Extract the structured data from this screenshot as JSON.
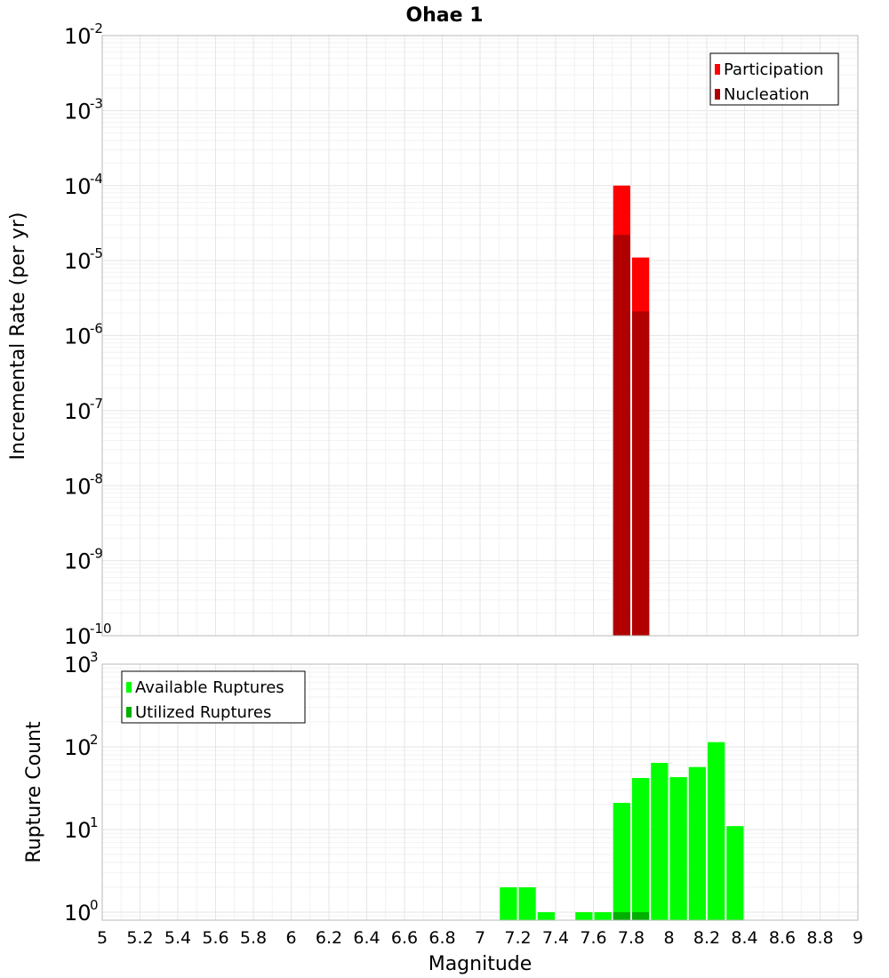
{
  "title": "Ohae 1",
  "chart_data": [
    {
      "type": "bar",
      "title": "Ohae 1",
      "ylabel": "Incremental Rate (per yr)",
      "xlabel": "",
      "yscale": "log",
      "ylim": [
        1e-10,
        0.01
      ],
      "xlim": [
        5,
        9
      ],
      "y_tick_exponents": [
        "-2",
        "-3",
        "-4",
        "-5",
        "-6",
        "-7",
        "-8",
        "-9",
        "-10"
      ],
      "grid": true,
      "legend_position": "top-right",
      "overlay": true,
      "series": [
        {
          "name": "Participation",
          "color": "#ff0000",
          "x": [
            7.75,
            7.85
          ],
          "values": [
            0.0001,
            1.1e-05
          ]
        },
        {
          "name": "Nucleation",
          "color": "#b00000",
          "x": [
            7.75,
            7.85
          ],
          "values": [
            2.2e-05,
            2.1e-06
          ]
        }
      ]
    },
    {
      "type": "bar",
      "xlabel": "Magnitude",
      "ylabel": "Rupture Count",
      "yscale": "log",
      "ylim": [
        0.8,
        1000
      ],
      "xlim": [
        5,
        9
      ],
      "x_ticks": [
        "5",
        "5.2",
        "5.4",
        "5.6",
        "5.8",
        "6",
        "6.2",
        "6.4",
        "6.6",
        "6.8",
        "7",
        "7.2",
        "7.4",
        "7.6",
        "7.8",
        "8",
        "8.2",
        "8.4",
        "8.6",
        "8.8",
        "9"
      ],
      "y_tick_exponents": [
        "3",
        "2",
        "1",
        "0"
      ],
      "grid": true,
      "legend_position": "top-left",
      "overlay": true,
      "series": [
        {
          "name": "Available Ruptures",
          "color": "#00ff00",
          "x": [
            7.15,
            7.25,
            7.35,
            7.55,
            7.65,
            7.75,
            7.85,
            7.95,
            8.05,
            8.15,
            8.25,
            8.35
          ],
          "values": [
            2,
            2,
            1,
            1,
            1,
            21,
            42,
            64,
            43,
            57,
            114,
            11
          ]
        },
        {
          "name": "Utilized Ruptures",
          "color": "#00b000",
          "x": [
            7.75,
            7.85
          ],
          "values": [
            1,
            1
          ]
        }
      ]
    }
  ]
}
